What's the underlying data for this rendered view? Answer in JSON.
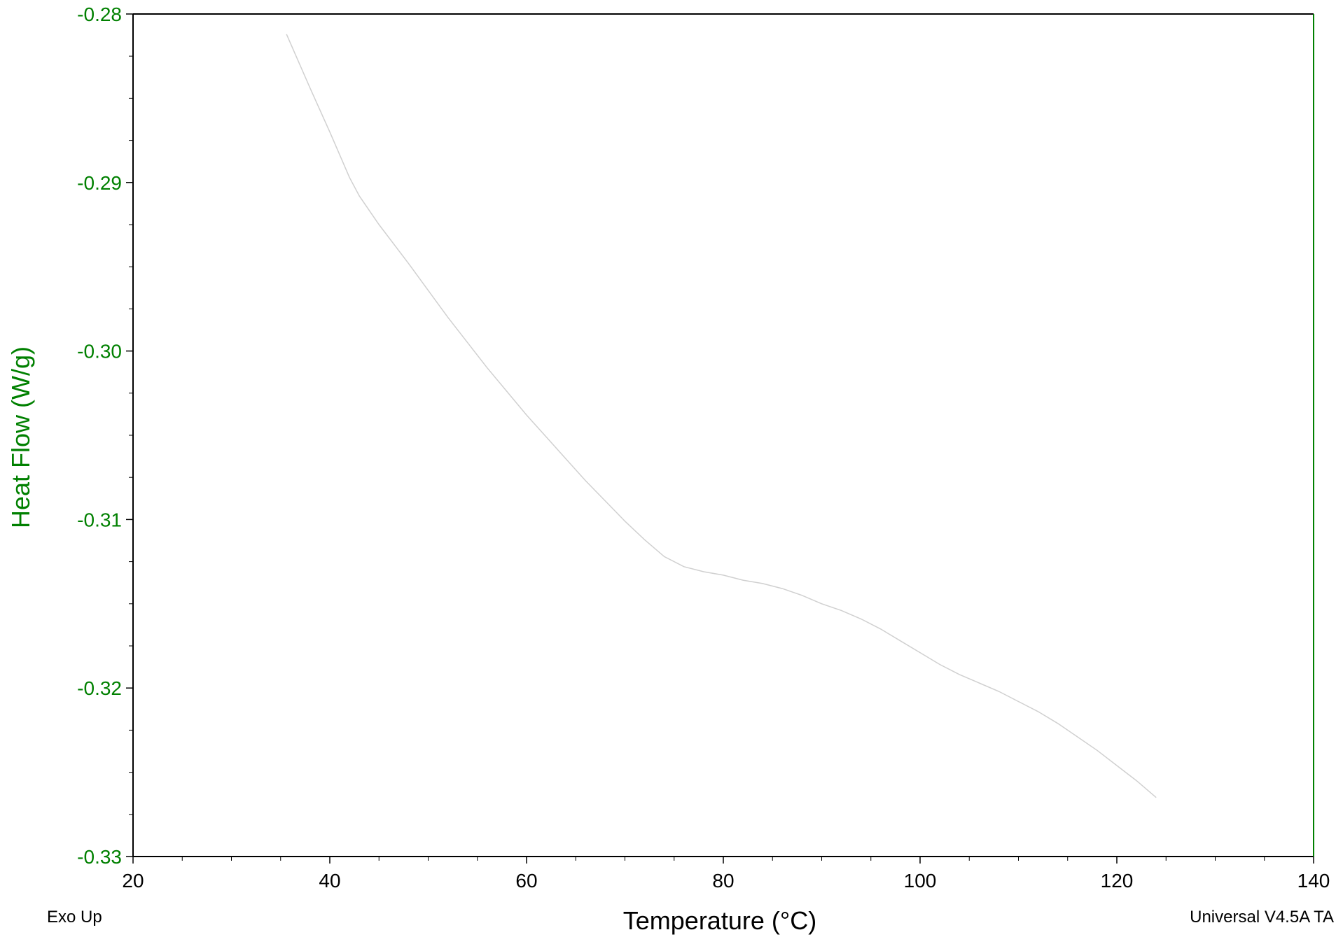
{
  "chart_data": {
    "type": "line",
    "xlabel": "Temperature (°C)",
    "ylabel": "Heat Flow (W/g)",
    "xlim": [
      20,
      140
    ],
    "ylim": [
      -0.33,
      -0.28
    ],
    "x_ticks": [
      "20",
      "40",
      "60",
      "80",
      "100",
      "120",
      "140"
    ],
    "y_ticks": [
      "-0.28",
      "-0.29",
      "-0.30",
      "-0.31",
      "-0.32",
      "-0.33"
    ],
    "grid": false,
    "colors": {
      "axis_y": "#008000",
      "axis_x": "#000000",
      "line": "#d0d0d0"
    },
    "series": [
      {
        "x": [
          35.6,
          38,
          40,
          42,
          43,
          45,
          48,
          50,
          52,
          54,
          56,
          58,
          60,
          62,
          64,
          66,
          68,
          70,
          72,
          74,
          76,
          78,
          80,
          82,
          84,
          86,
          88,
          90,
          92,
          94,
          96,
          98,
          100,
          102,
          104,
          106,
          108,
          110,
          112,
          114,
          116,
          118,
          120,
          122,
          124
        ],
        "y": [
          -0.2812,
          -0.2844,
          -0.287,
          -0.2897,
          -0.2908,
          -0.2925,
          -0.2948,
          -0.2964,
          -0.298,
          -0.2995,
          -0.301,
          -0.3024,
          -0.3038,
          -0.3051,
          -0.3064,
          -0.3077,
          -0.3089,
          -0.3101,
          -0.3112,
          -0.3122,
          -0.3128,
          -0.3131,
          -0.3133,
          -0.3136,
          -0.3138,
          -0.3141,
          -0.3145,
          -0.315,
          -0.3154,
          -0.3159,
          -0.3165,
          -0.3172,
          -0.3179,
          -0.3186,
          -0.3192,
          -0.3197,
          -0.3202,
          -0.3208,
          -0.3214,
          -0.3221,
          -0.3229,
          -0.3237,
          -0.3246,
          -0.3255,
          -0.3265
        ]
      }
    ]
  },
  "notes": {
    "left": "Exo Up",
    "right": "Universal V4.5A TA"
  }
}
